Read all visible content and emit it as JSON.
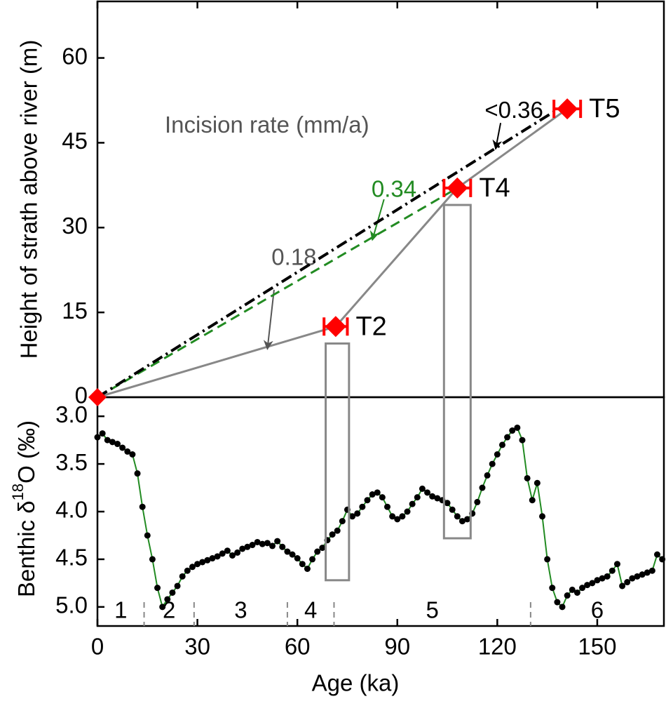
{
  "chart_data": [
    {
      "type": "scatter",
      "name": "terrace-heights",
      "xlabel": "Age (ka)",
      "ylabel": "Height of strath above river (m)",
      "xlim": [
        0,
        170
      ],
      "ylim": [
        0,
        70
      ],
      "x_ticks": [
        "0",
        "30",
        "60",
        "90",
        "120",
        "150"
      ],
      "x_tick_values": [
        0,
        30,
        60,
        90,
        120,
        150
      ],
      "y_ticks": [
        "0",
        "15",
        "30",
        "45",
        "60"
      ],
      "y_tick_values": [
        0,
        15,
        30,
        45,
        60
      ],
      "annotation_title": "Incision rate (mm/a)",
      "origin": {
        "x": 0,
        "y": 0
      },
      "points": [
        {
          "label": "T2",
          "x": 71.5,
          "y": 12.5,
          "xerr": 3.5
        },
        {
          "label": "T4",
          "x": 108,
          "y": 37,
          "xerr": 4
        },
        {
          "label": "T5",
          "x": 141,
          "y": 51,
          "xerr": 4
        }
      ],
      "rate_lines": [
        {
          "label": "0.18",
          "style": "solid",
          "color": "#888888",
          "label_color": "#555555",
          "points": [
            [
              0,
              0
            ],
            [
              71.5,
              12.5
            ],
            [
              108,
              37
            ],
            [
              141,
              51
            ]
          ],
          "label_pos": [
            59,
            24.5
          ],
          "arrow_from": [
            53,
            19
          ],
          "arrow_to": [
            51,
            8.5
          ]
        },
        {
          "label": "0.34",
          "style": "dashed",
          "color": "#228B22",
          "label_color": "#228B22",
          "points": [
            [
              0,
              0
            ],
            [
              108,
              37
            ]
          ],
          "label_pos": [
            89,
            36.5
          ],
          "arrow_from": [
            86,
            35
          ],
          "arrow_to": [
            82.5,
            27.8
          ]
        },
        {
          "label": "<0.36",
          "style": "dashdot",
          "color": "#000000",
          "label_color": "#000000",
          "points": [
            [
              0,
              0
            ],
            [
              137,
              50.5
            ]
          ],
          "label_pos": [
            125,
            50.5
          ],
          "arrow_from": [
            121,
            48.5
          ],
          "arrow_to": [
            119.5,
            43.9
          ]
        }
      ],
      "colors": {
        "marker": "#ff0000",
        "origin_marker": "#ff0000"
      }
    },
    {
      "type": "line",
      "name": "benthic-d18O",
      "xlabel": "Age (ka)",
      "ylabel": "Benthic δ18O (‰)",
      "ylabel_parts": {
        "pre": "Benthic δ",
        "sup": "18",
        "post": "O (‰)"
      },
      "xlim": [
        0,
        170
      ],
      "ylim": [
        5.2,
        2.8
      ],
      "y_inverted": true,
      "y_ticks": [
        "3.0",
        "3.5",
        "4.0",
        "4.5",
        "5.0"
      ],
      "y_tick_values": [
        3.0,
        3.5,
        4.0,
        4.5,
        5.0
      ],
      "line_color": "#228B22",
      "point_color": "#000000",
      "x": [
        0,
        1.5,
        3,
        4.5,
        6,
        7.5,
        9,
        10.5,
        12,
        13.5,
        15,
        16.5,
        18,
        19.5,
        21,
        22.5,
        24,
        25.5,
        27,
        28.5,
        30,
        31.5,
        33,
        34.5,
        36,
        37.5,
        39,
        40.5,
        42,
        43.5,
        45,
        46.5,
        48,
        49.5,
        51,
        52.5,
        54,
        55.5,
        57,
        58.5,
        60,
        61.5,
        63,
        64.5,
        66,
        67.5,
        69,
        70.5,
        72,
        73.5,
        75,
        76.5,
        78,
        79.5,
        81,
        82.5,
        84,
        85.5,
        87,
        88.5,
        90,
        91.5,
        93,
        94.5,
        96,
        97.5,
        99,
        100.5,
        102,
        103.5,
        105,
        106.5,
        108,
        109.5,
        111,
        112.5,
        114,
        115.5,
        117,
        118.5,
        120,
        121.5,
        123,
        124.5,
        126,
        127.5,
        129,
        130.5,
        132,
        133.5,
        135,
        136.5,
        138,
        139.5,
        141,
        142.5,
        144,
        145.5,
        147,
        148.5,
        150,
        151.5,
        153,
        154.5,
        156,
        157.5,
        159,
        160.5,
        162,
        163.5,
        165,
        166.5,
        168,
        169.5
      ],
      "values": [
        3.22,
        3.18,
        3.25,
        3.27,
        3.29,
        3.33,
        3.37,
        3.4,
        3.6,
        3.95,
        4.25,
        4.5,
        4.8,
        5.0,
        4.92,
        4.85,
        4.78,
        4.68,
        4.62,
        4.58,
        4.55,
        4.53,
        4.51,
        4.49,
        4.47,
        4.44,
        4.41,
        4.46,
        4.43,
        4.39,
        4.37,
        4.35,
        4.32,
        4.34,
        4.33,
        4.36,
        4.31,
        4.37,
        4.42,
        4.45,
        4.49,
        4.55,
        4.6,
        4.5,
        4.42,
        4.38,
        4.3,
        4.24,
        4.2,
        4.1,
        3.98,
        4.05,
        4.02,
        3.95,
        3.88,
        3.82,
        3.8,
        3.85,
        3.95,
        4.05,
        4.08,
        4.05,
        4.0,
        3.92,
        3.85,
        3.76,
        3.8,
        3.84,
        3.86,
        3.88,
        3.91,
        3.98,
        4.05,
        4.1,
        4.08,
        4.02,
        3.9,
        3.75,
        3.62,
        3.5,
        3.4,
        3.3,
        3.22,
        3.15,
        3.12,
        3.25,
        3.65,
        3.88,
        3.7,
        4.05,
        4.5,
        4.8,
        4.95,
        5.0,
        4.88,
        4.82,
        4.85,
        4.8,
        4.77,
        4.75,
        4.72,
        4.7,
        4.68,
        4.62,
        4.55,
        4.78,
        4.74,
        4.7,
        4.68,
        4.66,
        4.64,
        4.62,
        4.45,
        4.5
      ],
      "stages": [
        {
          "label": "1",
          "from": 0,
          "to": 14
        },
        {
          "label": "2",
          "from": 14,
          "to": 29
        },
        {
          "label": "3",
          "from": 29,
          "to": 57
        },
        {
          "label": "4",
          "from": 57,
          "to": 71
        },
        {
          "label": "5",
          "from": 71,
          "to": 130
        },
        {
          "label": "6",
          "from": 130,
          "to": 170
        }
      ],
      "stage_boundaries": [
        14,
        29,
        57,
        71,
        130
      ]
    }
  ],
  "correlation_boxes": [
    {
      "label": "T2",
      "x_from": 68.5,
      "x_to": 75.5,
      "top_height": 9.5,
      "bottom_d18O": 4.72
    },
    {
      "label": "T4",
      "x_from": 104,
      "x_to": 112,
      "top_height": 34,
      "bottom_d18O": 4.28
    }
  ]
}
